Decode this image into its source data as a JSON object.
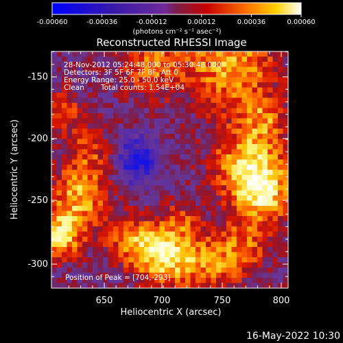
{
  "colorbar": {
    "ticks": [
      "-0.00060",
      "-0.00036",
      "-0.00012",
      "0.00012",
      "0.00036",
      "0.00060"
    ],
    "units": "(photons cm⁻² s⁻¹ asec⁻²)"
  },
  "title": "Reconstructed RHESSI Image",
  "annotations": {
    "time_range": "28-Nov-2012 05:24:48.000 to 05:30:48.000",
    "detectors": "Detectors: 3F 5F 6F 7F 8F, Att 0",
    "energy": "Energy Range: 25.0 - 50.0 keV",
    "algorithm": "Clean",
    "counts": "Total counts: 1.54E+04",
    "peak": "Position of Peak = [704,-293]"
  },
  "axes": {
    "xlabel": "Heliocentric X (arcsec)",
    "ylabel": "Heliocentric Y (arcsec)",
    "xticks": [
      "650",
      "700",
      "750",
      "800"
    ],
    "yticks": [
      "-150",
      "-200",
      "-250",
      "-300"
    ],
    "xlim": [
      615,
      805
    ],
    "ylim": [
      -325,
      -130
    ]
  },
  "footer": {
    "timestamp": "16-May-2022 10:30"
  }
}
